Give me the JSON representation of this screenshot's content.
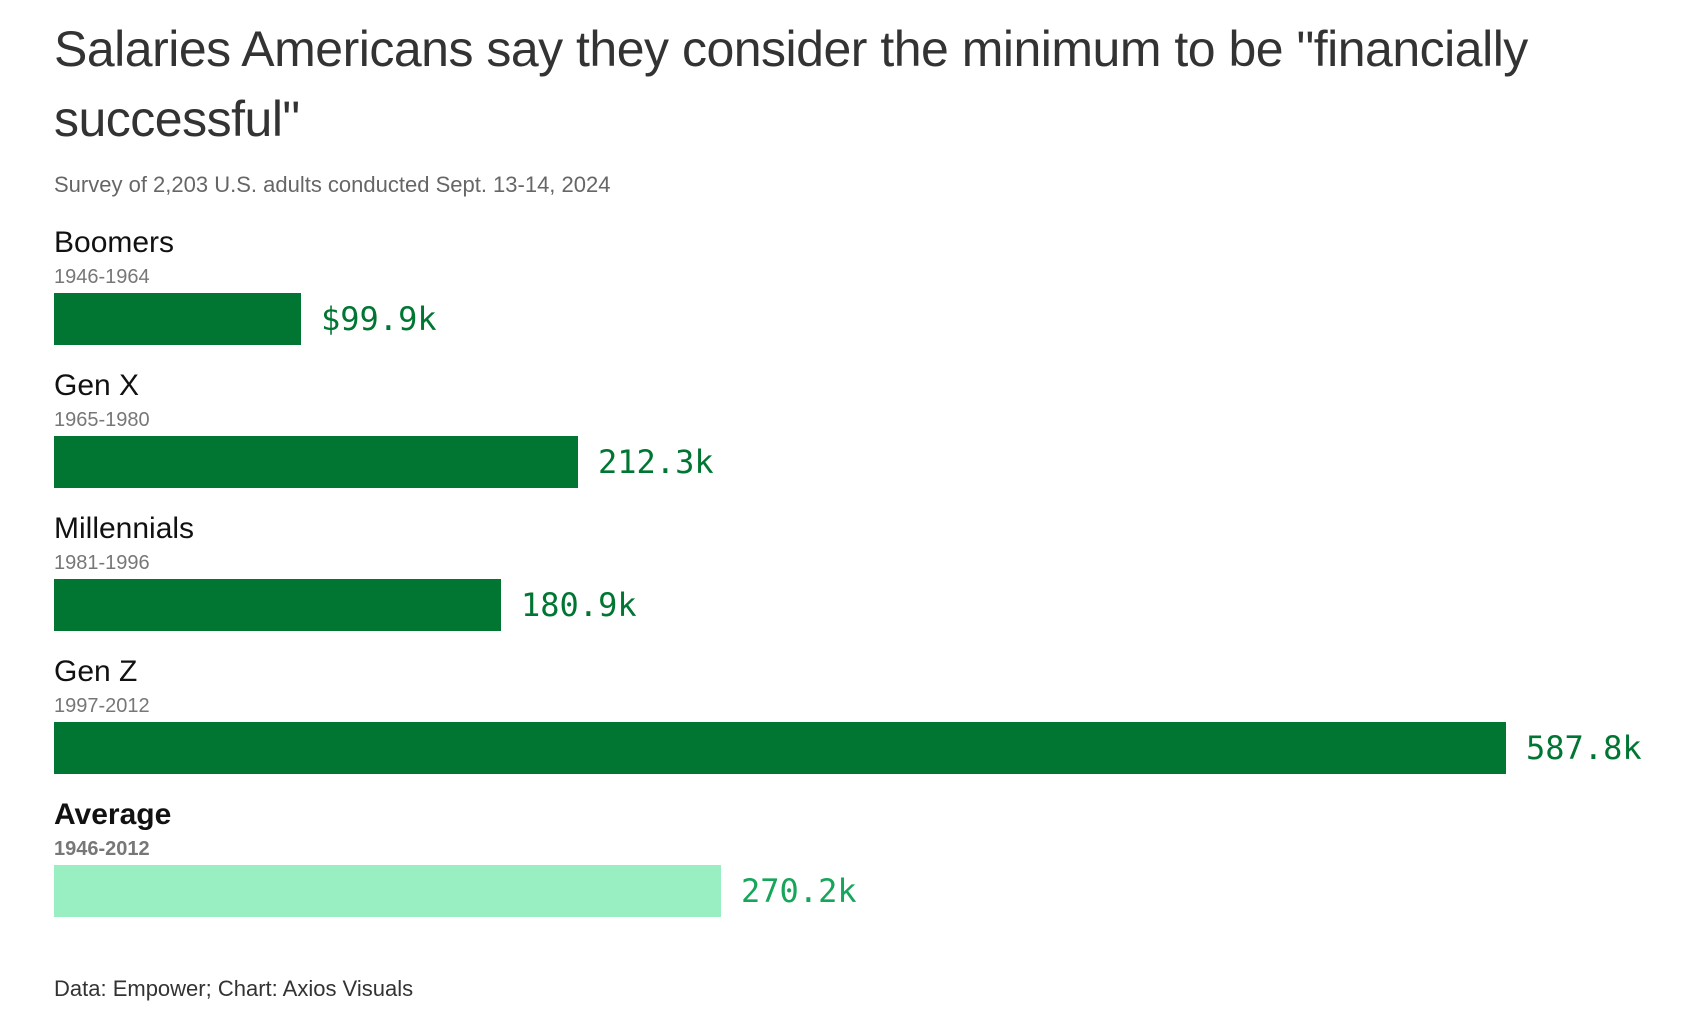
{
  "chart_data": {
    "type": "bar",
    "title": "Salaries Americans say they consider the minimum to be \"financially successful\"",
    "subtitle": "Survey of 2,203 U.S. adults conducted Sept. 13-14, 2024",
    "source": "Data: Empower; Chart: Axios Visuals",
    "orientation": "horizontal",
    "xlim": [
      0,
      587.8
    ],
    "categories": [
      "Boomers",
      "Gen X",
      "Millennials",
      "Gen Z",
      "Average"
    ],
    "ranges": [
      "1946-1964",
      "1965-1980",
      "1981-1996",
      "1997-2012",
      "1946-2012"
    ],
    "values": [
      99.9,
      212.3,
      180.9,
      587.8,
      270.2
    ],
    "labels": [
      "$99.9k",
      "212.3k",
      "180.9k",
      "587.8k",
      "270.2k"
    ],
    "colors": {
      "bar": "#007632",
      "average_bar": "#9aefc2",
      "average_label": "#16a55a"
    }
  }
}
